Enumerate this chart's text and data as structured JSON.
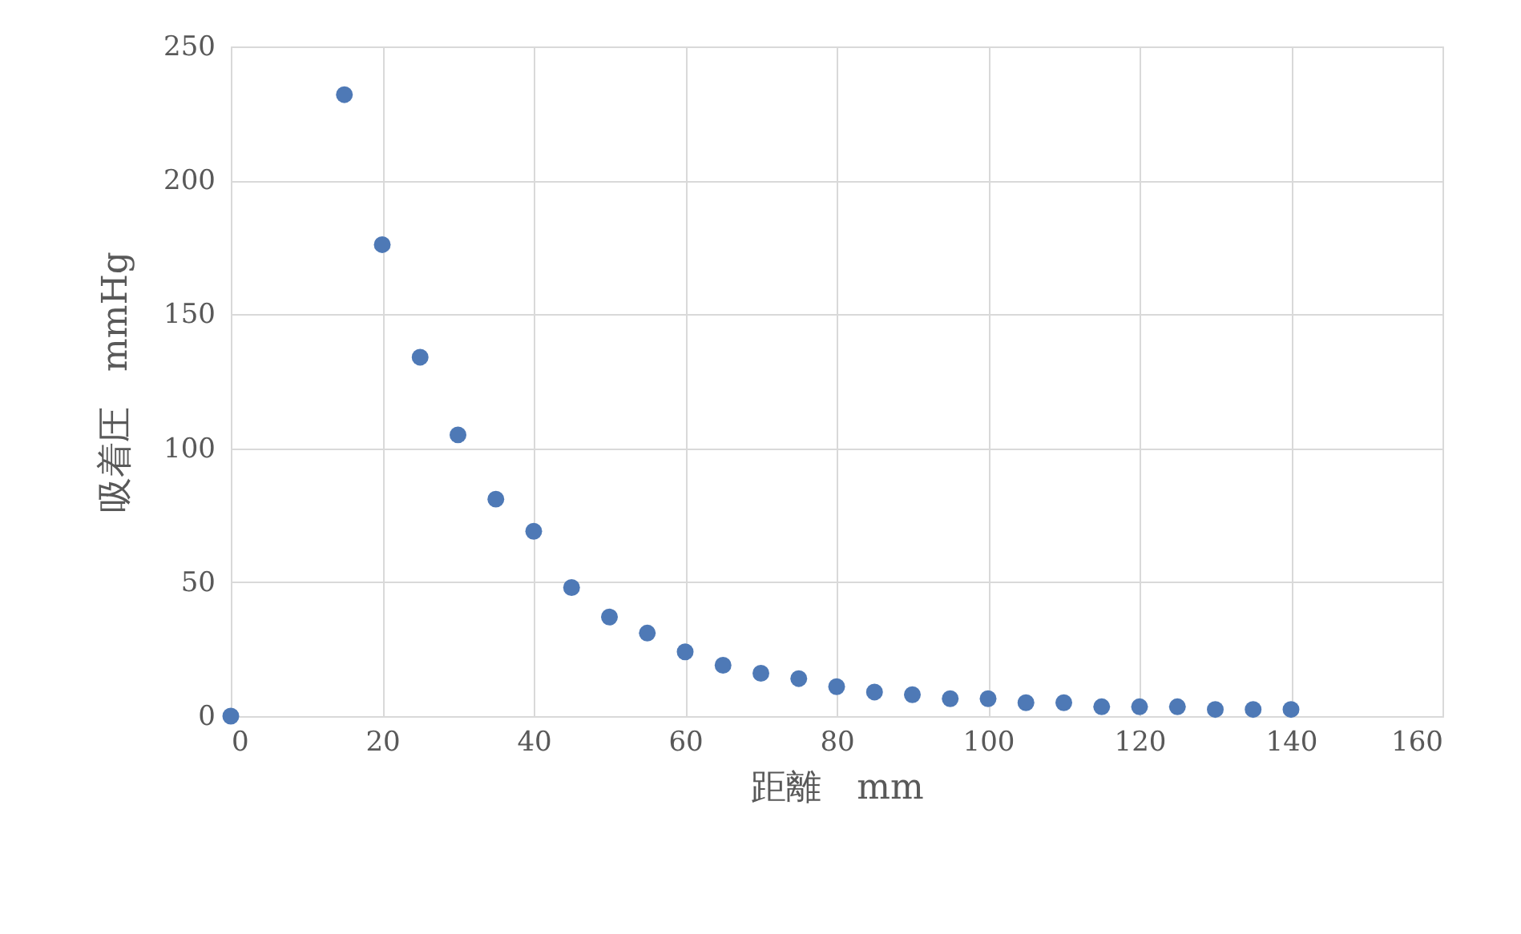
{
  "chart_data": {
    "type": "scatter",
    "xlabel": "距離　mm",
    "ylabel": "吸着圧　mmHg",
    "x": [
      0,
      15,
      20,
      25,
      30,
      35,
      40,
      45,
      50,
      55,
      60,
      65,
      70,
      75,
      80,
      85,
      90,
      95,
      100,
      105,
      110,
      115,
      120,
      125,
      130,
      135,
      140
    ],
    "series": [
      {
        "color": "#4e79b6",
        "values": [
          0,
          232,
          176,
          134,
          105,
          81,
          69,
          48,
          37,
          31,
          24,
          19,
          16,
          14,
          11,
          9,
          8,
          6.5,
          6.5,
          5,
          5,
          3.5,
          3.5,
          3.5,
          2.5,
          2.5,
          2.5
        ]
      }
    ],
    "xlim": [
      0,
      160
    ],
    "xticks": [
      0,
      20,
      40,
      60,
      80,
      100,
      120,
      140,
      160
    ],
    "ylim": [
      0,
      250
    ],
    "yticks": [
      0,
      50,
      100,
      150,
      200,
      250
    ],
    "grid": true,
    "marker": "circle"
  }
}
